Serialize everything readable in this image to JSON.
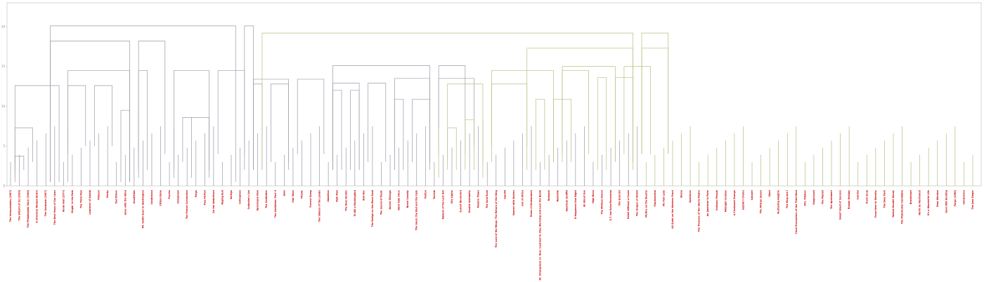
{
  "colors": {
    "axis": "#bbbbbb",
    "above_threshold": "#9a9aa8",
    "cluster": "#b5bf7e",
    "label": "#cc0000"
  },
  "chart_data": {
    "type": "dendrogram",
    "title": "",
    "xlabel": "",
    "ylabel": "",
    "ylim": [
      0,
      23
    ],
    "yticks": [
      "0",
      "5",
      "10",
      "15",
      "20"
    ],
    "grid": false,
    "legend": "none",
    "color_threshold": 14,
    "leaves": [
      "The Untouchables (1987)",
      "The Wizard of Oz (1939)",
      "The Philadelphia Story (1940)",
      "A Streetcar Named Desire",
      "The Graduate (1967)",
      "The Best Years of Our Lives",
      "Annie Hall (1977)",
      "Singin' in the Rain",
      "The Third Man",
      "Lawrence of Arabia",
      "Platoon",
      "Rocky",
      "Taxi Driver",
      "Gone with the Wind",
      "Goodfellas",
      "Mr. Smith Goes to Washington",
      "Casablanca",
      "Citizen Kane",
      "Psycho",
      "Chinatown",
      "The French Connection",
      "Fargo",
      "Pulp Fiction",
      "On the Waterfront",
      "Raging Bull",
      "Vertigo",
      "Unforgiven",
      "Schindler's List",
      "Apocalypse Now",
      "The Godfather",
      "The Godfather: Part II",
      "Jaws",
      "Star Wars",
      "Titanic",
      "Forrest Gump",
      "The Silence of the Lambs",
      "Amadeus",
      "Rain Man",
      "The Deer Hunter",
      "To Kill a Mockingbird",
      "Ben-Hur",
      "The Bridge on the River Kwai",
      "The Sound of Music",
      "Doctor Zhivago",
      "West Side Story",
      "Butch Cassidy",
      "The Good, the Bad and the Ugly",
      "Patton",
      "Tootsie",
      "Raiders of the Lost Ark",
      "City Lights",
      "Sunset Boulevard",
      "Double Indemnity",
      "Modern Times",
      "The Gold Rush",
      "The Lord of the Rings: The Return of the King",
      "Gandhi",
      "Dances with Wolves",
      "Out of Africa",
      "Terms of Endearment",
      "Dr. Strangelove or: How I Learned to Stop Worrying and Love the Bomb",
      "Network",
      "Nashville",
      "American Graffiti",
      "It Happened One Night",
      "All About Eve",
      "High Noon",
      "The Maltese Falcon",
      "E.T. the Extra-Terrestrial",
      "The Exorcist",
      "Rebel Without a Cause",
      "The Grapes of Wrath",
      "Mutiny on the Bounty",
      "Frankenstein",
      "My Fair Lady",
      "All Quiet on the Western Front",
      "Shane",
      "Spartacus",
      "The Treasure of the Sierra Madre",
      "An American in Paris",
      "Ordinary People",
      "Midnight Cowboy",
      "A Clockwork Orange",
      "Sophie's Choice",
      "Cabaret",
      "The African Queen",
      "Giant",
      "Wuthering Heights",
      "The King and I",
      "Close Encounters of the Third Kind",
      "Mrs. Miniver",
      "Stagecoach",
      "The Pianist",
      "The Apartment",
      "Sweet Smell of Success",
      "Roman Holiday",
      "Sunrise",
      "Duck Soup",
      "From Here to Eternity",
      "The Deer Park",
      "Yankee Doodle Dandy",
      "The Manchurian Candidate",
      "Braveheart",
      "North by Northwest",
      "It's a Wonderful Life",
      "Rear Window",
      "Good Will Hunting",
      "Fargo (1996)",
      "Intolerance",
      "The Jazz Singer"
    ],
    "links": [
      [
        0,
        3.72,
        1,
        [
          0,
          1
        ]
      ],
      [
        0,
        2.12,
        2,
        [
          1,
          2
        ]
      ],
      [
        0,
        3.72,
        2,
        [
          0,
          2
        ]
      ],
      [
        0,
        7.3,
        3,
        [
          0,
          3
        ]
      ],
      [
        0,
        12.6,
        0.5,
        [
          0,
          6
        ]
      ],
      [
        0,
        7.3,
        4,
        [
          6,
          7
        ]
      ],
      [
        0,
        12.6,
        5,
        [
          6,
          9
        ]
      ],
      [
        0,
        12.6,
        5,
        [
          9,
          12
        ]
      ],
      [
        0,
        9.5,
        0.5,
        [
          12,
          14
        ]
      ],
      [
        0,
        9.5,
        1,
        [
          14,
          15
        ]
      ],
      [
        0,
        14.5,
        0.5,
        [
          6,
          14
        ]
      ],
      [
        0,
        14.5,
        2,
        [
          14,
          16
        ]
      ],
      [
        0,
        18.2,
        0.5,
        [
          4,
          14
        ]
      ],
      [
        0,
        18.2,
        4,
        [
          14,
          18
        ]
      ],
      [
        1,
        7.3,
        1,
        [
          18,
          19
        ]
      ],
      [
        1,
        8.6,
        1,
        [
          20,
          21
        ]
      ],
      [
        1,
        8.6,
        1,
        [
          22,
          23
        ]
      ],
      [
        1,
        8.6,
        3,
        [
          19,
          23
        ]
      ],
      [
        1,
        14.5,
        2,
        [
          18,
          23
        ]
      ],
      [
        1,
        14.5,
        4,
        [
          23,
          27
        ]
      ],
      [
        1,
        12.8,
        2,
        [
          27,
          29
        ]
      ],
      [
        1,
        12.8,
        3,
        [
          29,
          32
        ]
      ],
      [
        1,
        13.4,
        2,
        [
          27,
          32
        ]
      ],
      [
        1,
        13.4,
        4,
        [
          32,
          36
        ]
      ],
      [
        1,
        12.0,
        2,
        [
          36,
          38
        ]
      ],
      [
        1,
        12.0,
        2,
        [
          38,
          40
        ]
      ],
      [
        1,
        12.9,
        2,
        [
          36,
          40
        ]
      ],
      [
        1,
        12.9,
        3,
        [
          40,
          43
        ]
      ],
      [
        1,
        10.9,
        2,
        [
          43,
          45
        ]
      ],
      [
        1,
        10.9,
        3,
        [
          45,
          48
        ]
      ],
      [
        1,
        13.5,
        2,
        [
          43,
          48
        ]
      ],
      [
        1,
        13.5,
        5,
        [
          48,
          53
        ]
      ],
      [
        1,
        15.1,
        3,
        [
          36,
          48
        ]
      ],
      [
        1,
        15.1,
        4,
        [
          48,
          52
        ]
      ],
      [
        0,
        20.1,
        0.5,
        [
          4,
          26
        ]
      ],
      [
        0,
        20.1,
        2,
        [
          26,
          28
        ]
      ],
      [
        2,
        7.3,
        1,
        [
          48,
          49
        ]
      ],
      [
        2,
        7.3,
        2,
        [
          49,
          51
        ]
      ],
      [
        2,
        8.3,
        2,
        [
          51,
          53
        ]
      ],
      [
        2,
        8.3,
        1,
        [
          53,
          54
        ]
      ],
      [
        2,
        12.8,
        3,
        [
          49,
          54
        ]
      ],
      [
        2,
        12.8,
        5,
        [
          54,
          59
        ]
      ],
      [
        2,
        10.9,
        2,
        [
          59,
          61
        ]
      ],
      [
        2,
        10.9,
        3,
        [
          61,
          64
        ]
      ],
      [
        2,
        14.5,
        3,
        [
          54,
          62
        ]
      ],
      [
        2,
        14.5,
        4,
        [
          62,
          66
        ]
      ],
      [
        2,
        13.6,
        2,
        [
          66,
          68
        ]
      ],
      [
        2,
        13.6,
        3,
        [
          68,
          71
        ]
      ],
      [
        2,
        15.0,
        3,
        [
          62,
          69
        ]
      ],
      [
        2,
        15.0,
        4,
        [
          69,
          73
        ]
      ],
      [
        2,
        17.3,
        2,
        [
          58,
          71
        ]
      ],
      [
        2,
        17.3,
        4,
        [
          71,
          75
        ]
      ],
      [
        2,
        19.2,
        3,
        [
          28,
          71
        ]
      ],
      [
        2,
        19.2,
        4,
        [
          71,
          75
        ]
      ]
    ]
  }
}
